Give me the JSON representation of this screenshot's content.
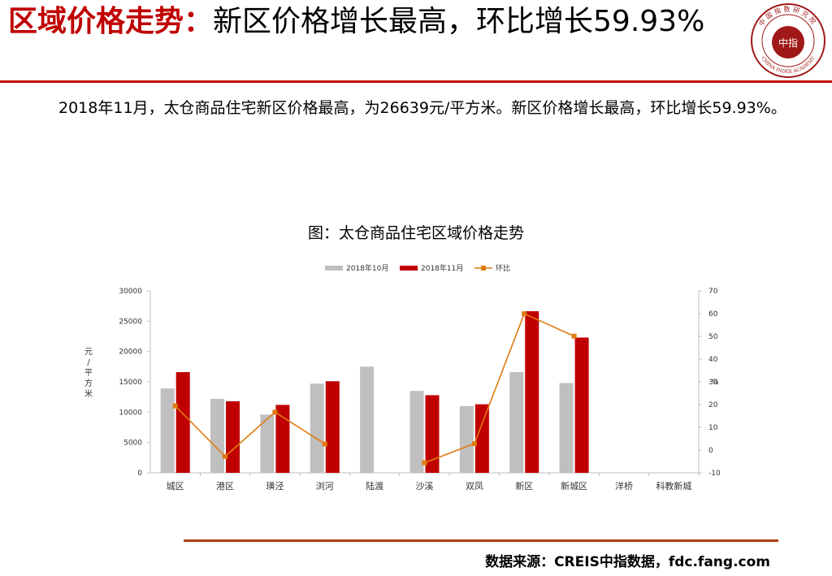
{
  "page": {
    "title_highlight": "区域价格走势：",
    "title_rest": "新区价格增长最高，环比增长59.93%",
    "body": "2018年11月，太仓商品住宅新区价格最高，为26639元/平方米。新区价格增长最高，环比增长59.93%。",
    "chart_title": "图：太仓商品住宅区域价格走势",
    "source": "数据来源：CREIS中指数据，fdc.fang.com",
    "logo": {
      "center_text": "中指",
      "arc_top": "中国指数研究院",
      "arc_bottom": "CHINA INDEX ACADEMY"
    }
  },
  "colors": {
    "accent_red": "#c00000",
    "bar_oct": "#bfbfbf",
    "bar_nov": "#c00000",
    "line_mom": "#e07b10"
  },
  "chart_data": {
    "type": "bar",
    "categories": [
      "城区",
      "港区",
      "璜泾",
      "浏河",
      "陆渡",
      "沙溪",
      "双凤",
      "新区",
      "新城区",
      "洋桥",
      "科教新城"
    ],
    "series": [
      {
        "name": "2018年10月",
        "type": "bar",
        "axis": "left",
        "values": [
          13900,
          12200,
          9600,
          14700,
          17500,
          13500,
          11000,
          16600,
          14800,
          null,
          null
        ]
      },
      {
        "name": "2018年11月",
        "type": "bar",
        "axis": "left",
        "values": [
          16600,
          11800,
          11200,
          15100,
          null,
          12800,
          11300,
          26639,
          22300,
          null,
          null
        ]
      },
      {
        "name": "环比",
        "type": "line",
        "axis": "right",
        "values": [
          19.4,
          -2.8,
          16.7,
          2.7,
          null,
          -5.6,
          2.8,
          59.93,
          50.1,
          null,
          null
        ]
      }
    ],
    "ylabel": "元/平方米",
    "y2label": "%",
    "ylim": [
      0,
      30000
    ],
    "yticks": [
      0,
      5000,
      10000,
      15000,
      20000,
      25000,
      30000
    ],
    "y2lim": [
      -10,
      70
    ],
    "y2ticks": [
      -10,
      0,
      10,
      20,
      30,
      40,
      50,
      60,
      70
    ],
    "legend": "top-center",
    "grid": false
  }
}
